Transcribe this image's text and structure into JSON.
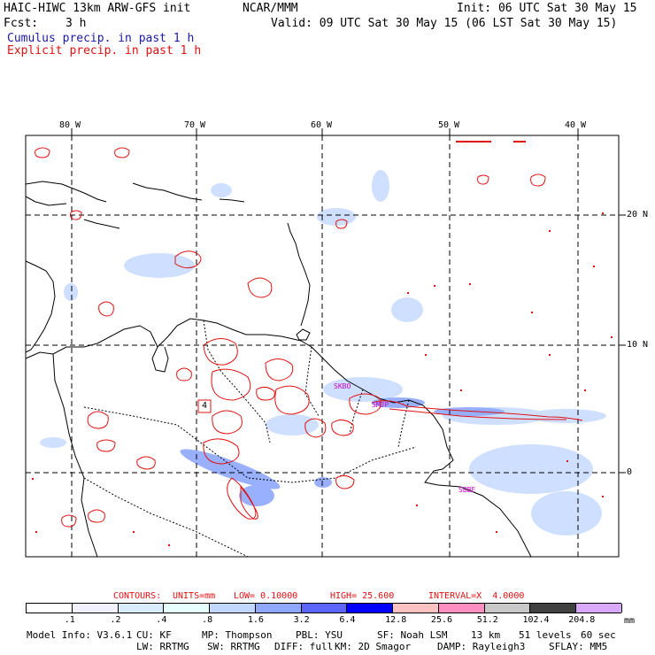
{
  "header": {
    "model": "HAIC-HIWC 13km ARW-GFS init",
    "org": "NCAR/MMM",
    "init": "Init: 06 UTC Sat 30 May 15",
    "fcst_label": "Fcst:",
    "fcst_value": "3 h",
    "valid": "Valid: 09 UTC Sat 30 May 15 (06 LST Sat 30 May 15)",
    "cumulus": "Cumulus precip. in past 1 h",
    "explicit": "Explicit precip. in past 1 h"
  },
  "map": {
    "lon_labels": [
      "80 W",
      "70 W",
      "60 W",
      "50 W",
      "40 W"
    ],
    "lat_labels": [
      "20 N",
      "10 N",
      "0"
    ],
    "stations": [
      "SMJP",
      "SBBE",
      "SKBO"
    ],
    "box_label": "4"
  },
  "contours_line": {
    "title": "CONTOURS:",
    "units": "UNITS=mm",
    "low": "LOW= 0.10000",
    "high": "HIGH= 25.600",
    "interval": "INTERVAL=X  4.0000"
  },
  "colorbar": {
    "ticks": [
      ".1",
      ".2",
      ".4",
      ".8",
      "1.6",
      "3.2",
      "6.4",
      "12.8",
      "25.6",
      "51.2",
      "102.4",
      "204.8"
    ],
    "unit": "mm",
    "colors": [
      "#ffffff",
      "#f0f0ff",
      "#d9ecff",
      "#e6ffff",
      "#c2d7ff",
      "#8fa8ff",
      "#5c66ff",
      "#0000ff",
      "#ffc2c2",
      "#ff8fc0",
      "#c8c8c8",
      "#404040",
      "#d9a8ff"
    ]
  },
  "footer": {
    "line1": [
      "Model Info: V3.6.1",
      "CU: KF",
      "MP: Thompson",
      "PBL: YSU",
      "SF: Noah LSM",
      "13 km",
      "51 levels",
      "60 sec"
    ],
    "line2": [
      "LW: RRTMG",
      "SW: RRTMG",
      "DIFF: full",
      "KM: 2D Smagor",
      "DAMP: Rayleigh3",
      "SFLAY: MM5"
    ]
  }
}
